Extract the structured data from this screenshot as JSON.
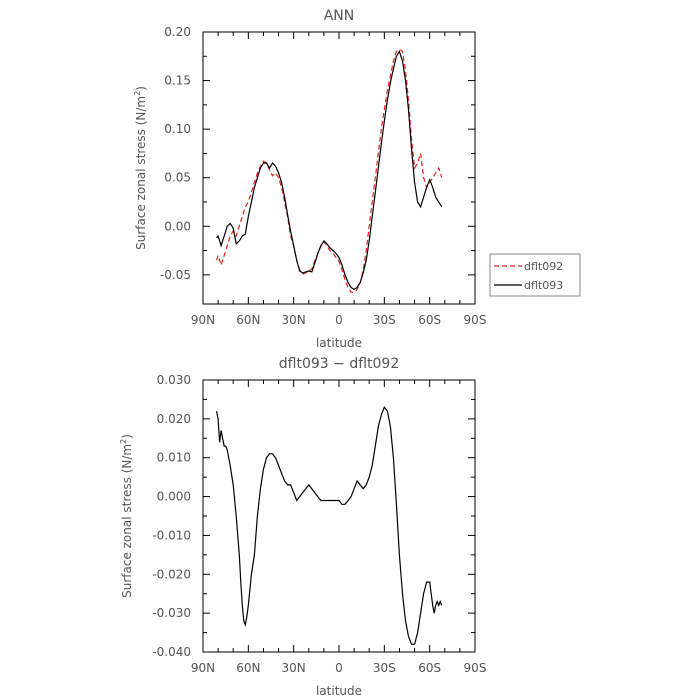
{
  "chart_data": [
    {
      "type": "line",
      "title": "ANN",
      "xlabel": "latitude",
      "ylabel": "Surface zonal stress (N/m",
      "ylabel_sup": "2",
      "ylabel_close": ")",
      "xlim": [
        90,
        -90
      ],
      "ylim": [
        -0.08,
        0.2
      ],
      "xticks": [
        90,
        60,
        30,
        0,
        -30,
        -60,
        -90
      ],
      "xtick_labels": [
        "90N",
        "60N",
        "30N",
        "0",
        "30S",
        "60S",
        "90S"
      ],
      "yticks": [
        -0.05,
        0.0,
        0.05,
        0.1,
        0.15,
        0.2
      ],
      "ytick_labels": [
        "-0.05",
        "0.00",
        "0.05",
        "0.10",
        "0.15",
        "0.20"
      ],
      "legend_position": "outside-right",
      "series": [
        {
          "name": "dflt092",
          "style": "dashed",
          "color": "#e8221b",
          "x": [
            81,
            80,
            78,
            76,
            74,
            72,
            70,
            68,
            66,
            64,
            62,
            60,
            58,
            56,
            54,
            52,
            50,
            48,
            46,
            44,
            42,
            40,
            38,
            36,
            34,
            32,
            30,
            28,
            26,
            24,
            22,
            20,
            18,
            16,
            14,
            12,
            10,
            8,
            6,
            4,
            2,
            0,
            -2,
            -4,
            -6,
            -8,
            -10,
            -12,
            -14,
            -16,
            -18,
            -20,
            -22,
            -24,
            -26,
            -28,
            -30,
            -32,
            -34,
            -36,
            -38,
            -40,
            -42,
            -44,
            -46,
            -48,
            -50,
            -52,
            -54,
            -56,
            -58,
            -60,
            -62,
            -64,
            -66,
            -68
          ],
          "y": [
            -0.035,
            -0.03,
            -0.04,
            -0.03,
            -0.02,
            -0.01,
            -0.005,
            -0.01,
            0.0,
            0.01,
            0.02,
            0.025,
            0.035,
            0.045,
            0.055,
            0.062,
            0.067,
            0.065,
            0.058,
            0.052,
            0.055,
            0.05,
            0.04,
            0.025,
            0.01,
            -0.01,
            -0.02,
            -0.035,
            -0.045,
            -0.049,
            -0.048,
            -0.046,
            -0.044,
            -0.035,
            -0.028,
            -0.02,
            -0.016,
            -0.02,
            -0.025,
            -0.028,
            -0.032,
            -0.036,
            -0.045,
            -0.055,
            -0.063,
            -0.068,
            -0.068,
            -0.065,
            -0.058,
            -0.045,
            -0.025,
            0.0,
            0.025,
            0.05,
            0.075,
            0.1,
            0.12,
            0.14,
            0.155,
            0.17,
            0.18,
            0.182,
            0.18,
            0.16,
            0.13,
            0.09,
            0.06,
            0.065,
            0.075,
            0.05,
            0.04,
            0.045,
            0.05,
            0.055,
            0.06,
            0.05
          ]
        },
        {
          "name": "dflt093",
          "style": "solid",
          "color": "#000000",
          "x": [
            81,
            80,
            78,
            76,
            74,
            72,
            70,
            68,
            66,
            64,
            62,
            60,
            58,
            56,
            54,
            52,
            50,
            48,
            46,
            44,
            42,
            40,
            38,
            36,
            34,
            32,
            30,
            28,
            26,
            24,
            22,
            20,
            18,
            16,
            14,
            12,
            10,
            8,
            6,
            4,
            2,
            0,
            -2,
            -4,
            -6,
            -8,
            -10,
            -12,
            -14,
            -16,
            -18,
            -20,
            -22,
            -24,
            -26,
            -28,
            -30,
            -32,
            -34,
            -36,
            -38,
            -40,
            -42,
            -44,
            -46,
            -48,
            -50,
            -52,
            -54,
            -56,
            -58,
            -60,
            -62,
            -64,
            -66,
            -68
          ],
          "y": [
            -0.012,
            -0.01,
            -0.02,
            -0.01,
            0.0,
            0.003,
            -0.002,
            -0.018,
            -0.015,
            -0.01,
            -0.008,
            0.01,
            0.025,
            0.04,
            0.05,
            0.06,
            0.065,
            0.065,
            0.06,
            0.065,
            0.062,
            0.055,
            0.045,
            0.03,
            0.012,
            -0.005,
            -0.02,
            -0.035,
            -0.046,
            -0.048,
            -0.047,
            -0.046,
            -0.047,
            -0.038,
            -0.028,
            -0.02,
            -0.015,
            -0.018,
            -0.022,
            -0.025,
            -0.028,
            -0.032,
            -0.04,
            -0.05,
            -0.058,
            -0.063,
            -0.065,
            -0.063,
            -0.058,
            -0.048,
            -0.035,
            -0.015,
            0.01,
            0.035,
            0.06,
            0.085,
            0.108,
            0.13,
            0.148,
            0.162,
            0.175,
            0.18,
            0.17,
            0.15,
            0.12,
            0.08,
            0.045,
            0.025,
            0.02,
            0.03,
            0.04,
            0.048,
            0.04,
            0.03,
            0.025,
            0.02
          ]
        }
      ]
    },
    {
      "type": "line",
      "title": "dflt093 − dflt092",
      "xlabel": "latitude",
      "ylabel": "Surface zonal stress (N/m",
      "ylabel_sup": "2",
      "ylabel_close": ")",
      "xlim": [
        90,
        -90
      ],
      "ylim": [
        -0.04,
        0.03
      ],
      "xticks": [
        90,
        60,
        30,
        0,
        -30,
        -60,
        -90
      ],
      "xtick_labels": [
        "90N",
        "60N",
        "30N",
        "0",
        "30S",
        "60S",
        "90S"
      ],
      "yticks": [
        -0.04,
        -0.03,
        -0.02,
        -0.01,
        0.0,
        0.01,
        0.02,
        0.03
      ],
      "ytick_labels": [
        "-0.040",
        "-0.030",
        "-0.020",
        "-0.010",
        "0.000",
        "0.010",
        "0.020",
        "0.030"
      ],
      "series": [
        {
          "style": "solid",
          "color": "#000000",
          "x": [
            81,
            80,
            79,
            78,
            77,
            76,
            75,
            74,
            72,
            70,
            68,
            66,
            65,
            64,
            63,
            62,
            61,
            60,
            58,
            56,
            54,
            52,
            50,
            48,
            46,
            44,
            42,
            40,
            38,
            36,
            34,
            32,
            30,
            28,
            26,
            24,
            22,
            20,
            18,
            16,
            14,
            12,
            10,
            8,
            6,
            4,
            2,
            0,
            -2,
            -4,
            -6,
            -8,
            -10,
            -12,
            -14,
            -16,
            -18,
            -20,
            -22,
            -24,
            -26,
            -28,
            -30,
            -32,
            -34,
            -36,
            -38,
            -40,
            -42,
            -44,
            -46,
            -48,
            -50,
            -52,
            -54,
            -56,
            -58,
            -60,
            -61,
            -62,
            -63,
            -64,
            -65,
            -66,
            -67,
            -68
          ],
          "y": [
            0.022,
            0.02,
            0.014,
            0.017,
            0.015,
            0.013,
            0.013,
            0.012,
            0.008,
            0.003,
            -0.005,
            -0.015,
            -0.022,
            -0.028,
            -0.032,
            -0.033,
            -0.031,
            -0.028,
            -0.02,
            -0.015,
            -0.005,
            0.002,
            0.007,
            0.01,
            0.011,
            0.011,
            0.01,
            0.008,
            0.006,
            0.004,
            0.003,
            0.003,
            0.001,
            -0.001,
            0.0,
            0.001,
            0.002,
            0.003,
            0.002,
            0.001,
            0.0,
            -0.001,
            -0.001,
            -0.001,
            -0.001,
            -0.001,
            -0.001,
            -0.001,
            -0.002,
            -0.002,
            -0.001,
            0.0,
            0.002,
            0.004,
            0.003,
            0.002,
            0.003,
            0.005,
            0.008,
            0.013,
            0.018,
            0.021,
            0.023,
            0.022,
            0.018,
            0.01,
            -0.002,
            -0.015,
            -0.025,
            -0.032,
            -0.036,
            -0.038,
            -0.038,
            -0.035,
            -0.03,
            -0.025,
            -0.022,
            -0.022,
            -0.025,
            -0.028,
            -0.03,
            -0.028,
            -0.027,
            -0.028,
            -0.027,
            -0.028
          ]
        }
      ]
    }
  ]
}
